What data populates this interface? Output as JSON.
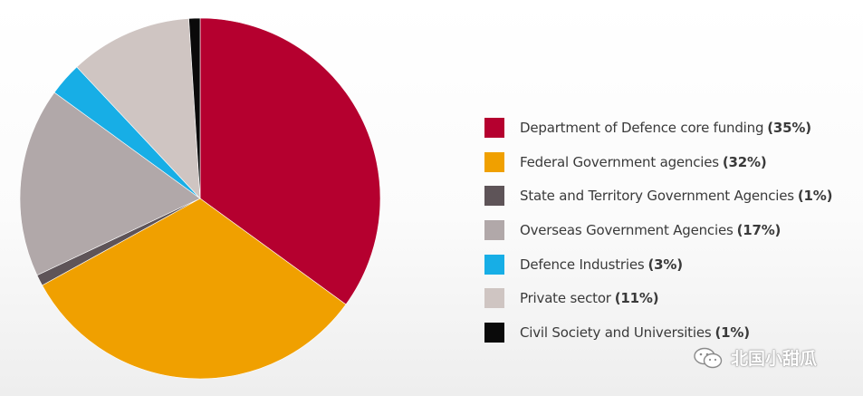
{
  "chart_data": {
    "type": "pie",
    "slices": [
      {
        "label": "Department of Defence core funding",
        "pct_label": "(35%)",
        "value": 35,
        "color": "#b5002f"
      },
      {
        "label": "Federal Government agencies",
        "pct_label": "(32%)",
        "value": 32,
        "color": "#f0a000"
      },
      {
        "label": "State and Territory Government Agencies",
        "pct_label": "(1%)",
        "value": 1,
        "color": "#5e5458"
      },
      {
        "label": "Overseas Government Agencies",
        "pct_label": "(17%)",
        "value": 17,
        "color": "#b1a8a9"
      },
      {
        "label": "Defence Industries",
        "pct_label": "(3%)",
        "value": 3,
        "color": "#17aee6"
      },
      {
        "label": "Private sector",
        "pct_label": "(11%)",
        "value": 11,
        "color": "#cfc5c2"
      },
      {
        "label": "Civil Society and Universities",
        "pct_label": "(1%)",
        "value": 1,
        "color": "#0a0a0a"
      }
    ],
    "legend_position": "right"
  },
  "watermark": {
    "text": "北国小甜瓜",
    "icon": "wechat-icon"
  }
}
